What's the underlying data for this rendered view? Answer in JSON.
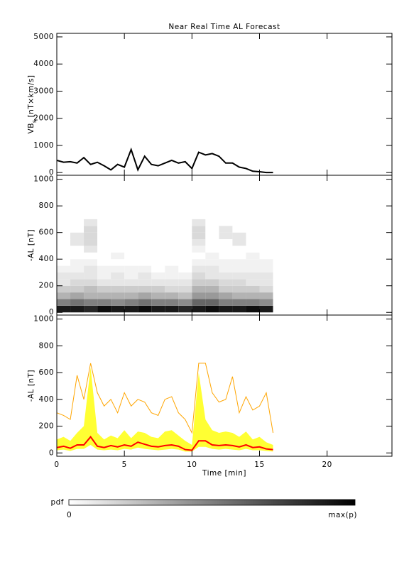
{
  "chart_data": [
    {
      "type": "line",
      "title": "Near Real Time AL Forecast",
      "ylabel": [
        "VB",
        "s",
        "[nT×km/s]"
      ],
      "x": [
        0,
        0.5,
        1,
        1.5,
        2,
        2.5,
        3,
        3.5,
        4,
        4.5,
        5,
        5.5,
        6,
        6.5,
        7,
        7.5,
        8,
        8.5,
        9,
        9.5,
        10,
        10.5,
        11,
        11.5,
        12,
        12.5,
        13,
        13.5,
        14,
        14.5,
        15,
        15.5,
        16
      ],
      "series": [
        {
          "color": "#000000",
          "values": [
            450,
            380,
            400,
            350,
            550,
            300,
            380,
            250,
            100,
            300,
            200,
            850,
            100,
            600,
            300,
            250,
            350,
            450,
            350,
            400,
            150,
            750,
            650,
            700,
            600,
            350,
            350,
            200,
            150,
            50,
            30,
            0,
            0
          ]
        }
      ],
      "xlim": [
        0,
        24.8
      ],
      "xticks": [
        0,
        5,
        10,
        15,
        20
      ],
      "xtick_labels": false,
      "ylim": [
        -100,
        5130
      ],
      "yticks": [
        0,
        1000,
        2000,
        3000,
        4000,
        5000
      ]
    },
    {
      "type": "heatmap",
      "ylabel": [
        "-AL [nT]"
      ],
      "x_edges": [
        0,
        1,
        2,
        3,
        4,
        5,
        6,
        7,
        8,
        9,
        10,
        11,
        12,
        13,
        14,
        15,
        16
      ],
      "y_edges": [
        0,
        50,
        100,
        150,
        200,
        250,
        300,
        350,
        400,
        450,
        500,
        550,
        600,
        650,
        700
      ],
      "z": [
        [
          0.9,
          0.5,
          0.3,
          0.2,
          0.1,
          0.1,
          0.05,
          0,
          0,
          0,
          0,
          0,
          0,
          0
        ],
        [
          0.9,
          0.55,
          0.35,
          0.2,
          0.15,
          0.1,
          0.05,
          0.05,
          0,
          0,
          0.1,
          0.1,
          0,
          0
        ],
        [
          0.85,
          0.5,
          0.3,
          0.25,
          0.15,
          0.1,
          0.1,
          0.05,
          0,
          0.1,
          0.15,
          0.15,
          0.15,
          0.1
        ],
        [
          0.95,
          0.5,
          0.3,
          0.2,
          0.1,
          0.05,
          0.05,
          0,
          0,
          0,
          0,
          0,
          0,
          0
        ],
        [
          0.9,
          0.45,
          0.3,
          0.2,
          0.1,
          0.1,
          0.05,
          0,
          0.05,
          0,
          0,
          0,
          0,
          0
        ],
        [
          0.9,
          0.5,
          0.3,
          0.2,
          0.1,
          0.05,
          0.05,
          0,
          0,
          0,
          0,
          0,
          0,
          0
        ],
        [
          0.95,
          0.55,
          0.35,
          0.2,
          0.1,
          0.1,
          0.05,
          0,
          0,
          0,
          0,
          0,
          0,
          0
        ],
        [
          0.9,
          0.5,
          0.3,
          0.2,
          0.1,
          0.05,
          0,
          0,
          0,
          0,
          0,
          0,
          0,
          0
        ],
        [
          0.9,
          0.5,
          0.3,
          0.15,
          0.1,
          0.05,
          0.05,
          0,
          0,
          0,
          0,
          0,
          0,
          0
        ],
        [
          0.85,
          0.45,
          0.25,
          0.15,
          0.1,
          0.05,
          0,
          0,
          0,
          0,
          0,
          0,
          0,
          0
        ],
        [
          0.9,
          0.6,
          0.4,
          0.3,
          0.2,
          0.15,
          0.1,
          0.05,
          0,
          0.05,
          0.1,
          0.15,
          0.15,
          0.1
        ],
        [
          0.95,
          0.6,
          0.4,
          0.3,
          0.2,
          0.1,
          0.1,
          0.05,
          0.05,
          0,
          0,
          0,
          0,
          0
        ],
        [
          0.9,
          0.5,
          0.35,
          0.2,
          0.15,
          0.1,
          0.05,
          0.05,
          0,
          0,
          0,
          0.1,
          0.1,
          0
        ],
        [
          0.9,
          0.5,
          0.3,
          0.2,
          0.15,
          0.1,
          0.05,
          0.05,
          0,
          0,
          0.1,
          0.1,
          0,
          0
        ],
        [
          0.95,
          0.5,
          0.3,
          0.2,
          0.1,
          0.1,
          0.05,
          0.05,
          0.05,
          0,
          0,
          0,
          0,
          0
        ],
        [
          0.9,
          0.45,
          0.3,
          0.15,
          0.1,
          0.1,
          0.05,
          0.05,
          0,
          0,
          0,
          0,
          0,
          0
        ]
      ],
      "xlim": [
        0,
        24.8
      ],
      "xticks": [
        0,
        5,
        10,
        15,
        20
      ],
      "xtick_labels": false,
      "ylim": [
        -20,
        1030
      ],
      "yticks": [
        0,
        200,
        400,
        600,
        800,
        1000
      ]
    },
    {
      "type": "line",
      "ylabel": [
        "-AL [nT]"
      ],
      "xlabel": "Time [min]",
      "x": [
        0,
        0.5,
        1,
        1.5,
        2,
        2.5,
        3,
        3.5,
        4,
        4.5,
        5,
        5.5,
        6,
        6.5,
        7,
        7.5,
        8,
        8.5,
        9,
        9.5,
        10,
        10.5,
        11,
        11.5,
        12,
        12.5,
        13,
        13.5,
        14,
        14.5,
        15,
        15.5,
        16
      ],
      "band": {
        "color": "#ffff33",
        "lower": [
          20,
          25,
          15,
          30,
          30,
          60,
          25,
          20,
          25,
          20,
          30,
          25,
          40,
          30,
          25,
          20,
          25,
          30,
          25,
          10,
          10,
          45,
          45,
          30,
          25,
          30,
          25,
          20,
          30,
          20,
          20,
          15,
          10
        ],
        "upper": [
          100,
          120,
          90,
          150,
          200,
          640,
          150,
          100,
          130,
          110,
          170,
          110,
          160,
          150,
          120,
          110,
          160,
          170,
          130,
          90,
          60,
          600,
          250,
          170,
          150,
          160,
          150,
          120,
          160,
          100,
          120,
          80,
          60
        ]
      },
      "series": [
        {
          "color": "#ffa500",
          "values": [
            300,
            280,
            250,
            580,
            400,
            670,
            450,
            350,
            400,
            300,
            450,
            350,
            400,
            380,
            300,
            280,
            400,
            420,
            300,
            250,
            150,
            670,
            670,
            450,
            380,
            400,
            570,
            300,
            420,
            320,
            350,
            450,
            150
          ]
        },
        {
          "color": "#ff0000",
          "values": [
            40,
            50,
            35,
            60,
            60,
            120,
            50,
            40,
            55,
            45,
            60,
            50,
            80,
            65,
            50,
            45,
            55,
            60,
            50,
            25,
            20,
            90,
            90,
            60,
            55,
            60,
            55,
            45,
            60,
            40,
            45,
            30,
            25
          ]
        }
      ],
      "xlim": [
        0,
        24.8
      ],
      "xticks": [
        0,
        5,
        10,
        15,
        20
      ],
      "xtick_labels": true,
      "ylim": [
        -25,
        1030
      ],
      "yticks": [
        0,
        200,
        400,
        600,
        800,
        1000
      ]
    }
  ],
  "colorbar": {
    "label": "pdf",
    "min_label": "0",
    "max_label": "max(p)"
  }
}
